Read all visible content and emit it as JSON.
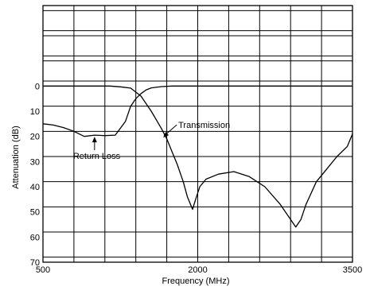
{
  "chart_data": {
    "type": "line",
    "xlabel": "Frequency (MHz)",
    "ylabel": "Attenuation (dB)",
    "xlim": [
      500,
      3500
    ],
    "ylim": [
      70,
      -32
    ],
    "x_ticks": [
      "500",
      "2000",
      "3500"
    ],
    "y_ticks": [
      "0",
      "10",
      "20",
      "30",
      "40",
      "50",
      "60",
      "70"
    ],
    "grid": true,
    "series": [
      {
        "name": "Transmission",
        "x": [
          500,
          700,
          800,
          1000,
          1150,
          1250,
          1350,
          1450,
          1550,
          1650,
          1700,
          1750,
          1800,
          1860,
          1900,
          1950,
          1980,
          2020,
          2080,
          2200,
          2350,
          2500,
          2650,
          2800,
          2900,
          2950,
          3000,
          3050,
          3150,
          3250,
          3350,
          3450,
          3500
        ],
        "y": [
          0,
          0,
          0,
          0,
          0,
          0.3,
          0.8,
          4,
          10,
          17,
          21,
          26,
          31,
          38,
          44,
          49,
          45,
          40,
          37,
          35,
          34,
          36,
          40,
          47,
          53,
          56,
          53,
          47,
          38,
          33,
          28,
          24,
          19
        ]
      },
      {
        "name": "Return Loss",
        "x": [
          500,
          600,
          700,
          800,
          900,
          1000,
          1100,
          1200,
          1300,
          1350,
          1400,
          1450,
          1500,
          1550,
          1650,
          1750,
          1850,
          2000,
          2500,
          3000,
          3500
        ],
        "y": [
          15,
          15.5,
          16.5,
          18,
          20,
          19.5,
          19.7,
          19.5,
          14,
          8,
          5,
          3,
          1.5,
          0.7,
          0.2,
          0,
          0,
          0,
          0,
          0,
          0
        ]
      }
    ],
    "annotations": [
      {
        "text": "Return Loss",
        "target": [
          1000,
          19.5
        ]
      },
      {
        "text": "Transmission",
        "target": [
          1650,
          17
        ]
      }
    ]
  }
}
